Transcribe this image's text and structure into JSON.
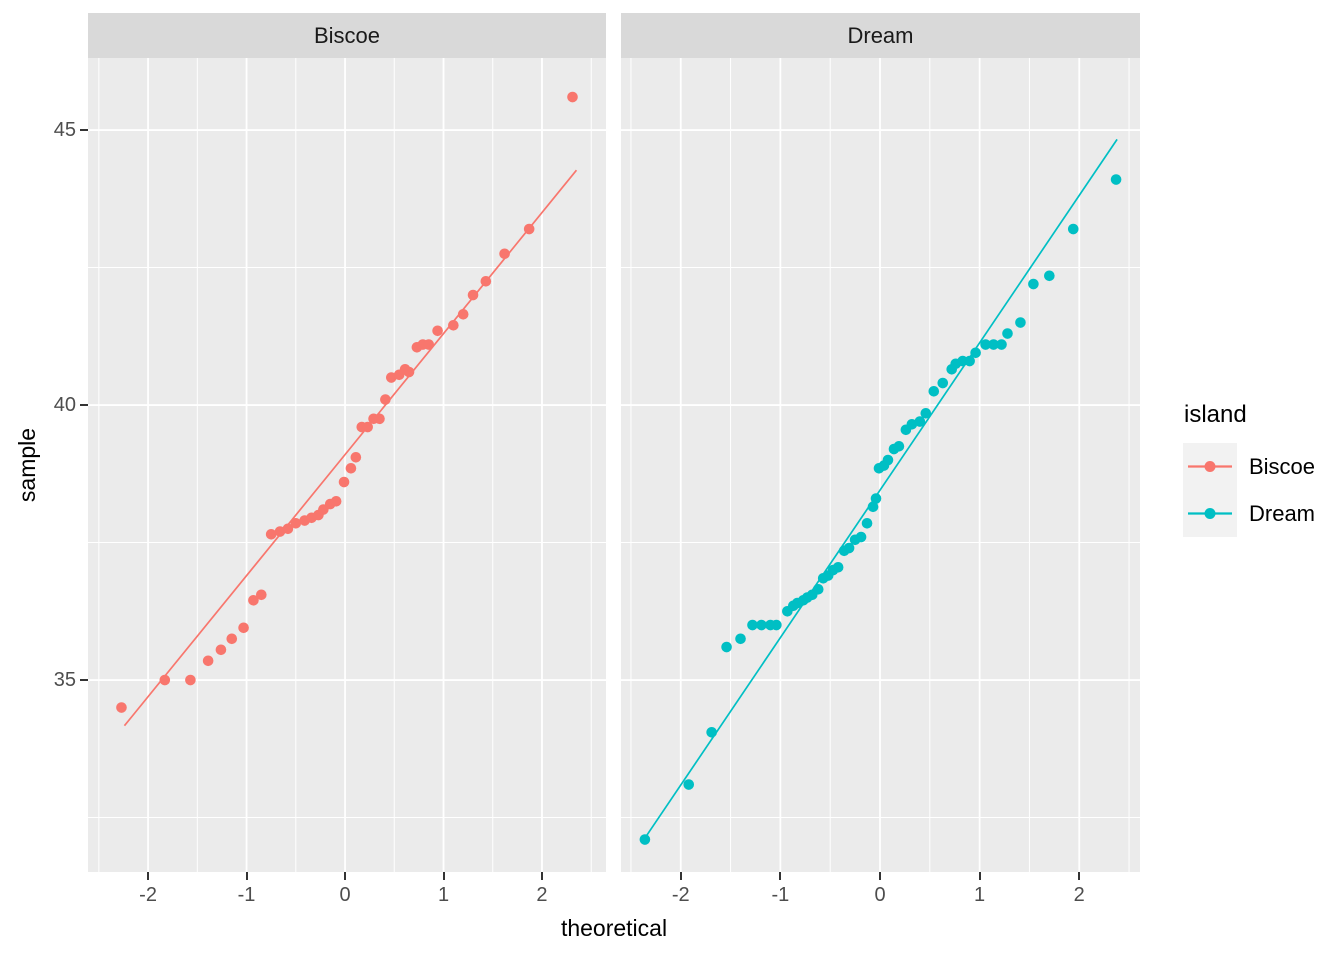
{
  "figure": {
    "x_axis_title": "theoretical",
    "y_axis_title": "sample",
    "facet_labels": [
      "Biscoe",
      "Dream"
    ],
    "legend": {
      "title": "island",
      "items": [
        {
          "label": "Biscoe",
          "color": "#F8766D"
        },
        {
          "label": "Dream",
          "color": "#00BFC4"
        }
      ]
    },
    "theme": {
      "panel_background": "#EBEBEB",
      "strip_background": "#D9D9D9",
      "grid_color": "#FFFFFF",
      "tick_label_color": "#4D4D4D",
      "tick_mark_color": "#333333",
      "biscoe_color": "#F8766D",
      "dream_color": "#00BFC4"
    }
  },
  "chart_data": {
    "type": "scatter",
    "subtype": "qq-plot-faceted",
    "title": "",
    "xlabel": "theoretical",
    "ylabel": "sample",
    "legend_title": "island",
    "legend_position": "right",
    "grid": true,
    "x_breaks": [
      -2,
      -1,
      0,
      1,
      2
    ],
    "x_minor_breaks": [
      -2.5,
      -1.5,
      -0.5,
      0.5,
      1.5,
      2.5
    ],
    "x_tick_labels": [
      "-2",
      "-1",
      "0",
      "1",
      "2"
    ],
    "y_breaks": [
      45,
      40,
      35
    ],
    "y_minor_breaks": [
      42.5,
      37.5,
      32.5
    ],
    "y_tick_labels": [
      "45",
      "40",
      "35"
    ],
    "panels": [
      {
        "facet": "Biscoe",
        "color": "#F8766D",
        "xlim": [
          -2.61,
          2.65
        ],
        "ylim": [
          31.51,
          46.31
        ],
        "qq_line": {
          "x1": -2.24,
          "y1": 34.17,
          "x2": 2.35,
          "y2": 44.27
        },
        "points": [
          [
            -2.27,
            34.5
          ],
          [
            -1.83,
            35.0
          ],
          [
            -1.57,
            35.0
          ],
          [
            -1.39,
            35.35
          ],
          [
            -1.26,
            35.55
          ],
          [
            -1.15,
            35.75
          ],
          [
            -1.03,
            35.95
          ],
          [
            -0.93,
            36.45
          ],
          [
            -0.85,
            36.55
          ],
          [
            -0.75,
            37.65
          ],
          [
            -0.66,
            37.7
          ],
          [
            -0.58,
            37.75
          ],
          [
            -0.5,
            37.85
          ],
          [
            -0.41,
            37.9
          ],
          [
            -0.34,
            37.95
          ],
          [
            -0.27,
            38.0
          ],
          [
            -0.22,
            38.1
          ],
          [
            -0.15,
            38.2
          ],
          [
            -0.09,
            38.25
          ],
          [
            -0.01,
            38.6
          ],
          [
            0.06,
            38.85
          ],
          [
            0.11,
            39.05
          ],
          [
            0.17,
            39.6
          ],
          [
            0.23,
            39.6
          ],
          [
            0.29,
            39.75
          ],
          [
            0.35,
            39.75
          ],
          [
            0.41,
            40.1
          ],
          [
            0.47,
            40.5
          ],
          [
            0.55,
            40.55
          ],
          [
            0.61,
            40.65
          ],
          [
            0.65,
            40.6
          ],
          [
            0.73,
            41.05
          ],
          [
            0.79,
            41.1
          ],
          [
            0.85,
            41.1
          ],
          [
            0.94,
            41.35
          ],
          [
            1.1,
            41.45
          ],
          [
            1.2,
            41.65
          ],
          [
            1.3,
            42.0
          ],
          [
            1.43,
            42.25
          ],
          [
            1.62,
            42.75
          ],
          [
            1.87,
            43.2
          ],
          [
            2.31,
            45.6
          ]
        ]
      },
      {
        "facet": "Dream",
        "color": "#00BFC4",
        "xlim": [
          -2.6,
          2.61
        ],
        "ylim": [
          31.51,
          46.31
        ],
        "qq_line": {
          "x1": -2.37,
          "y1": 32.1,
          "x2": 2.38,
          "y2": 44.83
        },
        "points": [
          [
            -2.36,
            32.1
          ],
          [
            -1.92,
            33.1
          ],
          [
            -1.69,
            34.05
          ],
          [
            -1.54,
            35.6
          ],
          [
            -1.4,
            35.75
          ],
          [
            -1.28,
            36.0
          ],
          [
            -1.19,
            36.0
          ],
          [
            -1.1,
            36.0
          ],
          [
            -1.04,
            36.0
          ],
          [
            -0.93,
            36.25
          ],
          [
            -0.87,
            36.35
          ],
          [
            -0.83,
            36.4
          ],
          [
            -0.77,
            36.45
          ],
          [
            -0.73,
            36.5
          ],
          [
            -0.68,
            36.55
          ],
          [
            -0.62,
            36.65
          ],
          [
            -0.57,
            36.85
          ],
          [
            -0.52,
            36.9
          ],
          [
            -0.47,
            37.0
          ],
          [
            -0.42,
            37.05
          ],
          [
            -0.36,
            37.35
          ],
          [
            -0.31,
            37.4
          ],
          [
            -0.25,
            37.55
          ],
          [
            -0.19,
            37.6
          ],
          [
            -0.13,
            37.85
          ],
          [
            -0.07,
            38.15
          ],
          [
            -0.04,
            38.3
          ],
          [
            -0.01,
            38.85
          ],
          [
            0.04,
            38.9
          ],
          [
            0.08,
            39.0
          ],
          [
            0.14,
            39.2
          ],
          [
            0.19,
            39.25
          ],
          [
            0.26,
            39.55
          ],
          [
            0.32,
            39.65
          ],
          [
            0.4,
            39.7
          ],
          [
            0.46,
            39.85
          ],
          [
            0.54,
            40.25
          ],
          [
            0.63,
            40.4
          ],
          [
            0.72,
            40.65
          ],
          [
            0.76,
            40.75
          ],
          [
            0.83,
            40.8
          ],
          [
            0.9,
            40.8
          ],
          [
            0.96,
            40.95
          ],
          [
            1.06,
            41.1
          ],
          [
            1.14,
            41.1
          ],
          [
            1.22,
            41.1
          ],
          [
            1.28,
            41.3
          ],
          [
            1.41,
            41.5
          ],
          [
            1.54,
            42.2
          ],
          [
            1.7,
            42.35
          ],
          [
            1.94,
            43.2
          ],
          [
            2.37,
            44.1
          ]
        ]
      }
    ]
  }
}
